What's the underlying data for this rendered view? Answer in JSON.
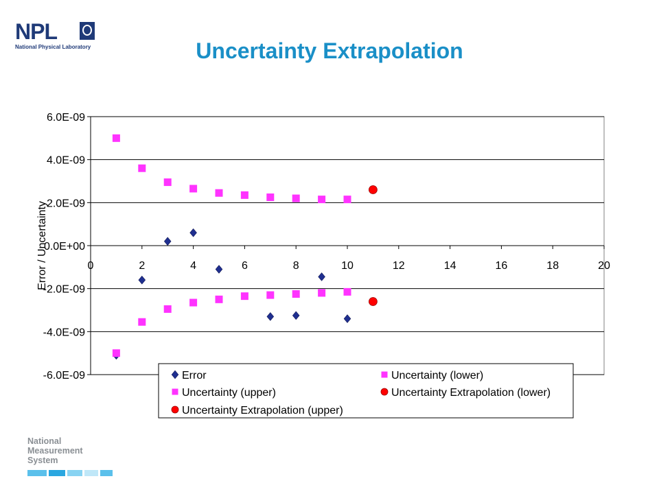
{
  "slide": {
    "logo_text": "NPL",
    "logo_subtitle": "National Physical Laboratory",
    "title": "Uncertainty Extrapolation",
    "footer_lines": [
      "National",
      "Measurement",
      "System"
    ],
    "footer_colors": [
      "#5bc0eb",
      "#2aa7e0",
      "#88d3f2",
      "#bfe7f8"
    ]
  },
  "colors": {
    "title": "#1a8fc7",
    "logo": "#1f3a78",
    "error": "#1f2f8f",
    "uncertainty": "#ff33ff",
    "extrapolation": "#ff0000",
    "plot_bg": "#ffffff",
    "grid": "#000000"
  },
  "chart_data": {
    "type": "scatter",
    "title": "",
    "xlabel": "",
    "ylabel": "Error / Uncertainty",
    "xlim": [
      0,
      20
    ],
    "ylim": [
      -6e-09,
      6e-09
    ],
    "x_ticks": [
      0,
      2,
      4,
      6,
      8,
      10,
      12,
      14,
      16,
      18,
      20
    ],
    "x_tick_labels": [
      "0",
      "2",
      "4",
      "6",
      "8",
      "10",
      "12",
      "14",
      "16",
      "18",
      "20"
    ],
    "y_ticks": [
      -6e-09,
      -4e-09,
      -2e-09,
      0,
      2e-09,
      4e-09,
      6e-09
    ],
    "y_tick_labels": [
      "-6.0E-09",
      "-4.0E-09",
      "-2.0E-09",
      "0.0E+00",
      "2.0E-09",
      "4.0E-09",
      "6.0E-09"
    ],
    "grid": "horizontal major gridlines",
    "legend_position": "bottom-right",
    "series": [
      {
        "name": "Error",
        "marker": "diamond",
        "color": "#1f2f8f",
        "points": [
          [
            1,
            -5.1e-09
          ],
          [
            2,
            -1.6e-09
          ],
          [
            3,
            2e-10
          ],
          [
            4,
            6e-10
          ],
          [
            5,
            -1.1e-09
          ],
          [
            7,
            -3.3e-09
          ],
          [
            8,
            -3.25e-09
          ],
          [
            9,
            -1.45e-09
          ],
          [
            10,
            -3.4e-09
          ]
        ]
      },
      {
        "name": "Uncertainty (lower)",
        "marker": "square",
        "color": "#ff33ff",
        "points": [
          [
            1,
            -5e-09
          ],
          [
            2,
            -3.55e-09
          ],
          [
            3,
            -2.95e-09
          ],
          [
            4,
            -2.65e-09
          ],
          [
            5,
            -2.5e-09
          ],
          [
            6,
            -2.35e-09
          ],
          [
            7,
            -2.3e-09
          ],
          [
            8,
            -2.25e-09
          ],
          [
            9,
            -2.2e-09
          ],
          [
            10,
            -2.15e-09
          ]
        ]
      },
      {
        "name": "Uncertainty (upper)",
        "marker": "square",
        "color": "#ff33ff",
        "points": [
          [
            1,
            5e-09
          ],
          [
            2,
            3.6e-09
          ],
          [
            3,
            2.95e-09
          ],
          [
            4,
            2.65e-09
          ],
          [
            5,
            2.45e-09
          ],
          [
            6,
            2.35e-09
          ],
          [
            7,
            2.25e-09
          ],
          [
            8,
            2.2e-09
          ],
          [
            9,
            2.15e-09
          ],
          [
            10,
            2.15e-09
          ]
        ]
      },
      {
        "name": "Uncertainty Extrapolation (lower)",
        "marker": "circle",
        "color": "#ff0000",
        "points": [
          [
            11,
            -2.6e-09
          ]
        ]
      },
      {
        "name": "Uncertainty Extrapolation (upper)",
        "marker": "circle",
        "color": "#ff0000",
        "points": [
          [
            11,
            2.6e-09
          ]
        ]
      }
    ]
  }
}
